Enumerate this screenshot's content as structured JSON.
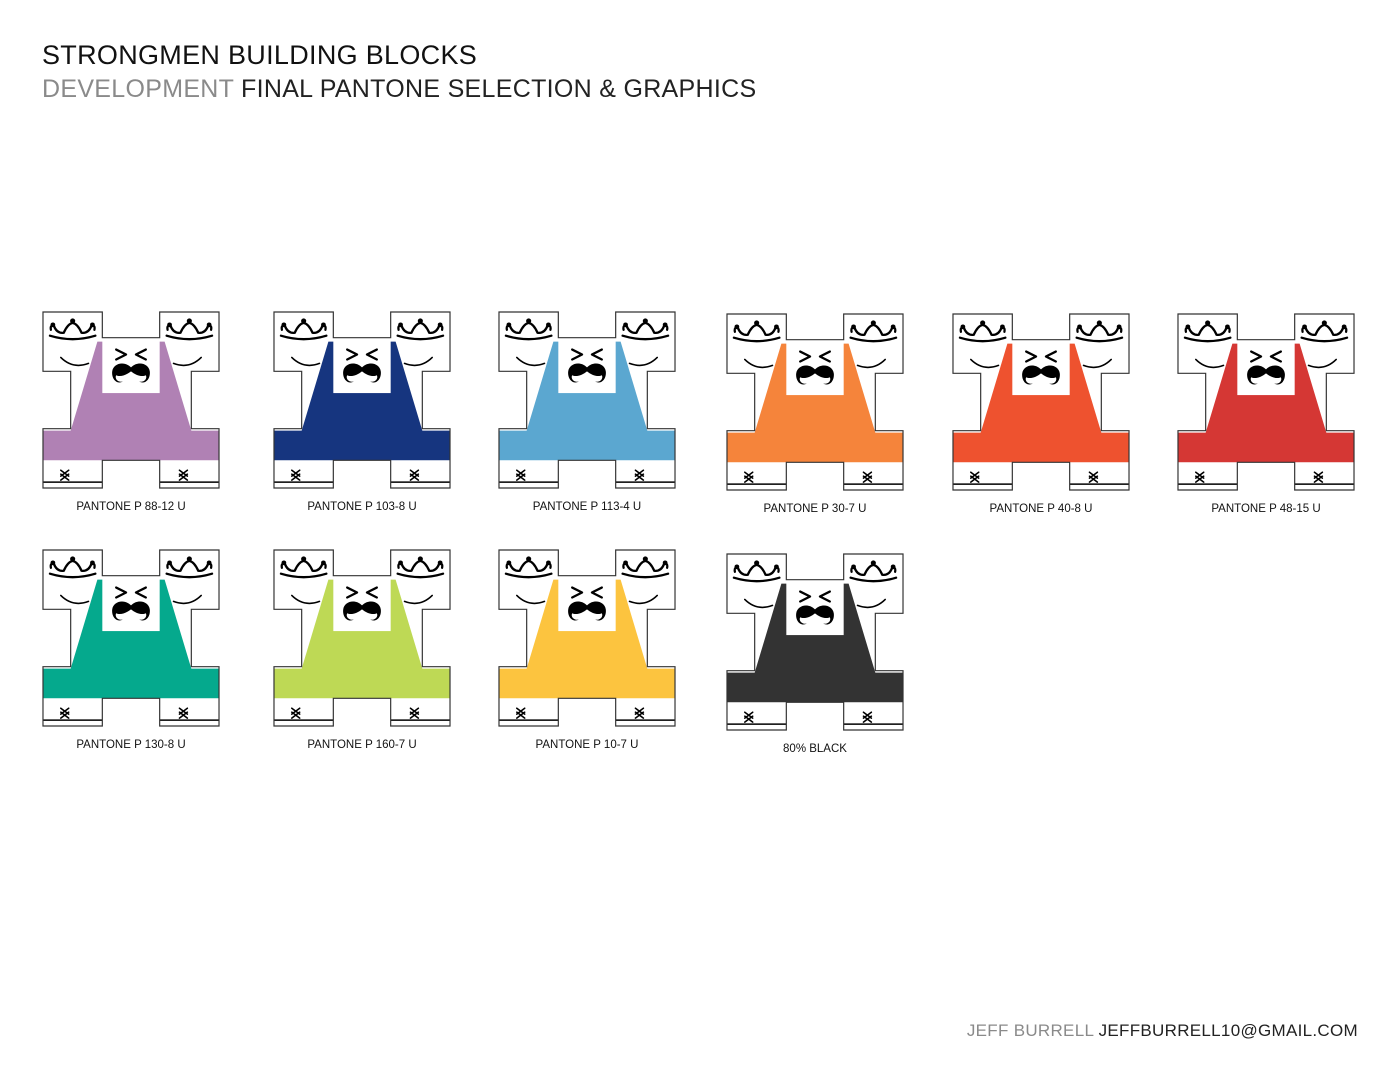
{
  "header": {
    "title": "STRONGMEN BUILDING BLOCKS",
    "subtitle_prefix": "DEVELOPMENT",
    "subtitle_rest": "FINAL PANTONE SELECTION & GRAPHICS"
  },
  "swatches": [
    {
      "label": "PANTONE P 88-12 U",
      "color": "#B081B4"
    },
    {
      "label": "PANTONE P 103-8 U",
      "color": "#16357F"
    },
    {
      "label": "PANTONE P 113-4 U",
      "color": "#5BA7D0"
    },
    {
      "label": "PANTONE P 30-7 U",
      "color": "#F5843B"
    },
    {
      "label": "PANTONE P 40-8 U",
      "color": "#EE522F"
    },
    {
      "label": "PANTONE P 48-15 U",
      "color": "#D53734"
    },
    {
      "label": "PANTONE P 130-8 U",
      "color": "#05A98D"
    },
    {
      "label": "PANTONE P 160-7 U",
      "color": "#BED955"
    },
    {
      "label": "PANTONE P 10-7 U",
      "color": "#FCC43F"
    },
    {
      "label": "80% BLACK",
      "color": "#333333"
    }
  ],
  "footer": {
    "name": "JEFF BURRELL",
    "email": "JEFFBURRELL10@GMAIL.COM"
  }
}
